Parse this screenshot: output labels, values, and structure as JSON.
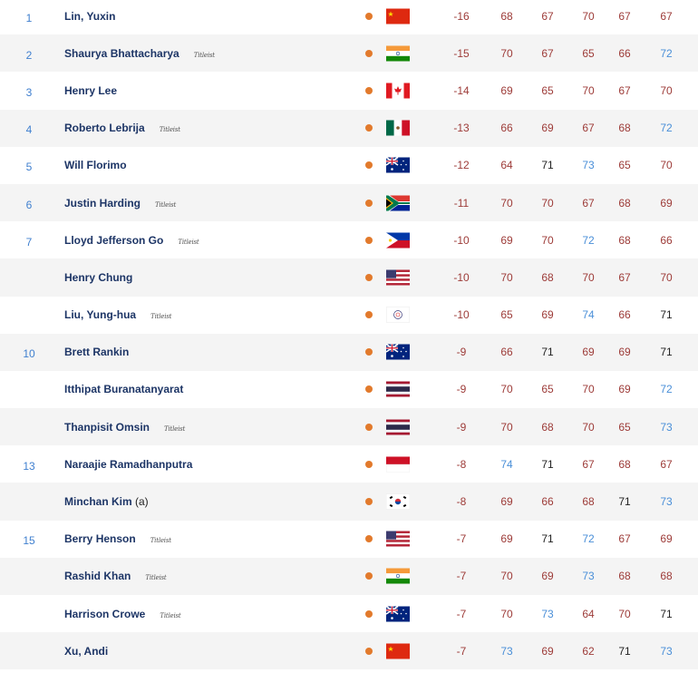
{
  "colors": {
    "under": "#9d3b38",
    "even": "#222222",
    "over": "#4a8fd8",
    "rank": "#3f7fcf",
    "name": "#1d3566",
    "status_dot": "#e27a2c"
  },
  "par": 71,
  "players": [
    {
      "rank": "1",
      "name": "Lin, Yuxin",
      "sponsor": "",
      "flag": "CHN",
      "total": "-16",
      "rounds": [
        "68",
        "67",
        "70",
        "67",
        "67"
      ]
    },
    {
      "rank": "2",
      "name": "Shaurya Bhattacharya",
      "sponsor": "Titleist",
      "flag": "IND",
      "total": "-15",
      "rounds": [
        "70",
        "67",
        "65",
        "66",
        "72"
      ]
    },
    {
      "rank": "3",
      "name": "Henry Lee",
      "sponsor": "",
      "flag": "CAN",
      "total": "-14",
      "rounds": [
        "69",
        "65",
        "70",
        "67",
        "70"
      ]
    },
    {
      "rank": "4",
      "name": "Roberto Lebrija",
      "sponsor": "Titleist",
      "flag": "MEX",
      "total": "-13",
      "rounds": [
        "66",
        "69",
        "67",
        "68",
        "72"
      ]
    },
    {
      "rank": "5",
      "name": "Will Florimo",
      "sponsor": "",
      "flag": "AUS",
      "total": "-12",
      "rounds": [
        "64",
        "71",
        "73",
        "65",
        "70"
      ]
    },
    {
      "rank": "6",
      "name": "Justin Harding",
      "sponsor": "Titleist",
      "flag": "RSA",
      "total": "-11",
      "rounds": [
        "70",
        "70",
        "67",
        "68",
        "69"
      ]
    },
    {
      "rank": "7",
      "name": "Lloyd Jefferson Go",
      "sponsor": "Titleist",
      "flag": "PHI",
      "total": "-10",
      "rounds": [
        "69",
        "70",
        "72",
        "68",
        "66"
      ]
    },
    {
      "rank": "",
      "name": "Henry Chung",
      "sponsor": "",
      "flag": "USA",
      "total": "-10",
      "rounds": [
        "70",
        "68",
        "70",
        "67",
        "70"
      ]
    },
    {
      "rank": "",
      "name": "Liu, Yung-hua",
      "sponsor": "Titleist",
      "flag": "TPE",
      "total": "-10",
      "rounds": [
        "65",
        "69",
        "74",
        "66",
        "71"
      ]
    },
    {
      "rank": "10",
      "name": "Brett Rankin",
      "sponsor": "",
      "flag": "AUS",
      "total": "-9",
      "rounds": [
        "66",
        "71",
        "69",
        "69",
        "71"
      ]
    },
    {
      "rank": "",
      "name": "Itthipat Buranatanyarat",
      "sponsor": "",
      "flag": "THA",
      "total": "-9",
      "rounds": [
        "70",
        "65",
        "70",
        "69",
        "72"
      ]
    },
    {
      "rank": "",
      "name": "Thanpisit Omsin",
      "sponsor": "Titleist",
      "flag": "THA",
      "total": "-9",
      "rounds": [
        "70",
        "68",
        "70",
        "65",
        "73"
      ]
    },
    {
      "rank": "13",
      "name": "Naraajie Ramadhanputra",
      "sponsor": "",
      "flag": "INA",
      "total": "-8",
      "rounds": [
        "74",
        "71",
        "67",
        "68",
        "67"
      ]
    },
    {
      "rank": "",
      "name": "Minchan Kim",
      "amateur": "(a)",
      "sponsor": "",
      "flag": "KOR",
      "total": "-8",
      "rounds": [
        "69",
        "66",
        "68",
        "71",
        "73"
      ]
    },
    {
      "rank": "15",
      "name": "Berry Henson",
      "sponsor": "Titleist",
      "flag": "USA",
      "total": "-7",
      "rounds": [
        "69",
        "71",
        "72",
        "67",
        "69"
      ]
    },
    {
      "rank": "",
      "name": "Rashid Khan",
      "sponsor": "Titleist",
      "flag": "IND",
      "total": "-7",
      "rounds": [
        "70",
        "69",
        "73",
        "68",
        "68"
      ]
    },
    {
      "rank": "",
      "name": "Harrison Crowe",
      "sponsor": "Titleist",
      "flag": "AUS",
      "total": "-7",
      "rounds": [
        "70",
        "73",
        "64",
        "70",
        "71"
      ]
    },
    {
      "rank": "",
      "name": "Xu, Andi",
      "sponsor": "",
      "flag": "CHN",
      "total": "-7",
      "rounds": [
        "73",
        "69",
        "62",
        "71",
        "73"
      ]
    }
  ]
}
